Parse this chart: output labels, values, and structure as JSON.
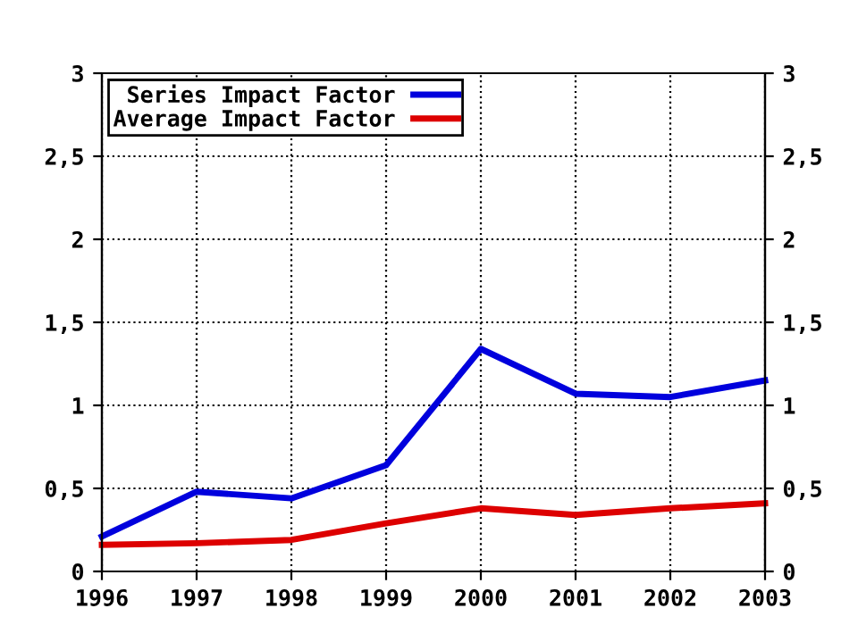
{
  "chart_data": {
    "type": "line",
    "x": [
      1996,
      1997,
      1998,
      1999,
      2000,
      2001,
      2002,
      2003
    ],
    "series": [
      {
        "name": "Series Impact Factor",
        "color": "#0000dd",
        "values": [
          0.21,
          0.48,
          0.44,
          0.64,
          1.34,
          1.07,
          1.05,
          1.15
        ]
      },
      {
        "name": "Average Impact Factor",
        "color": "#dd0000",
        "values": [
          0.16,
          0.17,
          0.19,
          0.29,
          0.38,
          0.34,
          0.38,
          0.41
        ]
      }
    ],
    "xlim": [
      1996,
      2003
    ],
    "xticks": [
      1996,
      1997,
      1998,
      1999,
      2000,
      2001,
      2002,
      2003
    ],
    "ylim": [
      0,
      3
    ],
    "yticks": [
      0,
      {
        "value": 0.5,
        "label": "0,5"
      },
      1,
      {
        "value": 1.5,
        "label": "1,5"
      },
      2,
      {
        "value": 2.5,
        "label": "2,5"
      },
      3
    ],
    "y2lim": [
      0,
      3
    ],
    "y2ticks": [
      0,
      {
        "value": 0.5,
        "label": "0,5"
      },
      1,
      {
        "value": 1.5,
        "label": "1,5"
      },
      2,
      {
        "value": 2.5,
        "label": "2,5"
      },
      3
    ],
    "grid": true,
    "legend": "top left",
    "marker": "none",
    "line_style": "solid"
  }
}
